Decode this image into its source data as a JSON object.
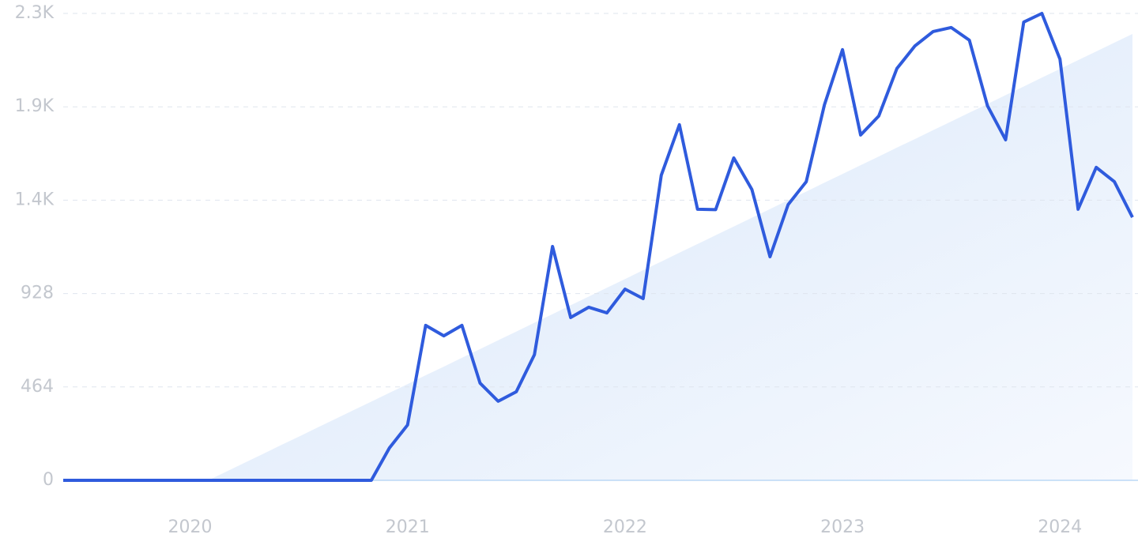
{
  "chart_data": {
    "type": "line",
    "categories": [
      null,
      null,
      null,
      null,
      null,
      null,
      null,
      "2020",
      null,
      null,
      null,
      null,
      null,
      null,
      null,
      null,
      null,
      null,
      null,
      "2021",
      null,
      null,
      null,
      null,
      null,
      null,
      null,
      null,
      null,
      null,
      null,
      "2022",
      null,
      null,
      null,
      null,
      null,
      null,
      null,
      null,
      null,
      null,
      null,
      "2023",
      null,
      null,
      null,
      null,
      null,
      null,
      null,
      null,
      null,
      null,
      null,
      "2024",
      null,
      null,
      null,
      null
    ],
    "series": [
      {
        "color": "#2f5bdd",
        "values": [
          0,
          0,
          0,
          0,
          0,
          0,
          0,
          0,
          0,
          0,
          0,
          0,
          0,
          0,
          0,
          0,
          0,
          0,
          161,
          275,
          770,
          718,
          770,
          483,
          393,
          440,
          624,
          1162,
          809,
          860,
          832,
          950,
          903,
          1516,
          1767,
          1347,
          1345,
          1602,
          1445,
          1111,
          1370,
          1484,
          1865,
          2140,
          1716,
          1810,
          2046,
          2159,
          2230,
          2250,
          2187,
          1861,
          1692,
          2277,
          2320,
          2093,
          1347,
          1555,
          1484,
          1307
        ]
      }
    ],
    "trend": {
      "color": "#dce9fb",
      "values": [
        null,
        null,
        null,
        null,
        null,
        null,
        null,
        null,
        0,
        43,
        87,
        130,
        174,
        217,
        261,
        304,
        348,
        391,
        435,
        478,
        522,
        565,
        609,
        652,
        696,
        739,
        783,
        826,
        870,
        913,
        957,
        1000,
        1044,
        1087,
        1131,
        1174,
        1218,
        1261,
        1305,
        1348,
        1392,
        1435,
        1479,
        1522,
        1566,
        1609,
        1653,
        1696,
        1740,
        1783,
        1827,
        1870,
        1914,
        1957,
        2001,
        2044,
        2088,
        2131,
        2175,
        2218
      ]
    },
    "ylim": [
      0,
      2320
    ],
    "yticks": [
      0,
      464,
      928,
      {
        "value": 1392,
        "label": "1.4K"
      },
      {
        "value": 1856,
        "label": "1.9K"
      },
      {
        "value": 2320,
        "label": "2.3K"
      }
    ],
    "grid": true
  }
}
